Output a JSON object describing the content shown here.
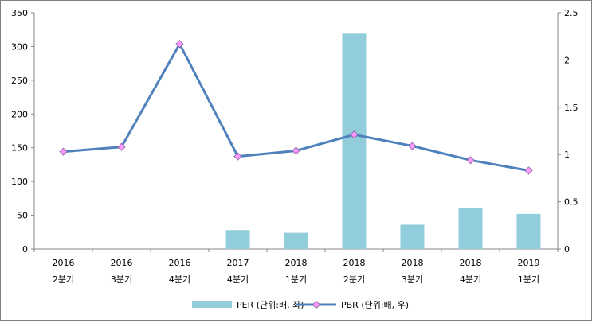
{
  "chart_data": {
    "type": "bar",
    "title": "",
    "categories": [
      [
        "2016",
        "2분기"
      ],
      [
        "2016",
        "3분기"
      ],
      [
        "2016",
        "4분기"
      ],
      [
        "2017",
        "4분기"
      ],
      [
        "2018",
        "1분기"
      ],
      [
        "2018",
        "2분기"
      ],
      [
        "2018",
        "3분기"
      ],
      [
        "2018",
        "4분기"
      ],
      [
        "2019",
        "1분기"
      ]
    ],
    "series": [
      {
        "name": "PER (단위:배, 좌)",
        "type": "bar",
        "axis": "left",
        "color": "#92cddc",
        "values": [
          null,
          null,
          null,
          28,
          24,
          319,
          36,
          61,
          52
        ]
      },
      {
        "name": "PBR (단위:배, 우)",
        "type": "line",
        "axis": "right",
        "color": "#4f81bd",
        "marker_color": "#ff99ff",
        "values": [
          1.03,
          1.08,
          2.17,
          0.98,
          1.04,
          1.21,
          1.09,
          0.94,
          0.83
        ]
      }
    ],
    "y_left": {
      "min": 0,
      "max": 350,
      "ticks": [
        "0",
        "50",
        "100",
        "150",
        "200",
        "250",
        "300",
        "350"
      ]
    },
    "y_right": {
      "min": 0,
      "max": 2.5,
      "ticks": [
        "0",
        "0.5",
        "1",
        "1.5",
        "2",
        "2.5"
      ]
    },
    "grid": false,
    "legend_position": "bottom"
  }
}
